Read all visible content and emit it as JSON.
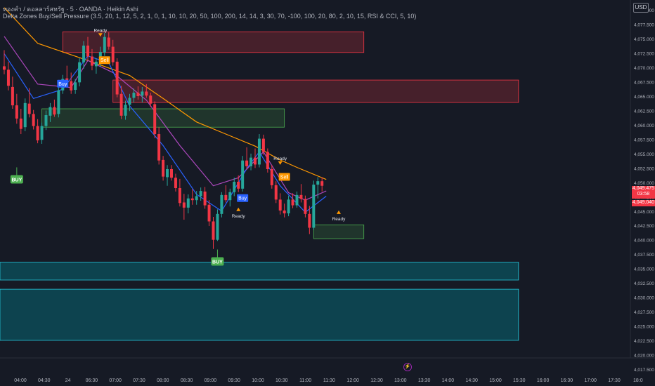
{
  "header": {
    "line1": "ทองคำ / ดอลลาร์สหรัฐ · 5 · OANDA · Heikin Ashi",
    "line2": "Delta Zones Buy/Sell Pressure (3.5, 20, 1, 12, 5, 2, 1, 0, 1, 10, 10, 20, 50, 100, 200, 14, 14, 3, 30, 70, -100, 100, 20, 80, 2, 10, 15, RSI & CCI, 5, 10)"
  },
  "currency_button": "USD",
  "last_price": "4,049.475",
  "countdown": "03:58",
  "bid_price": "4,049.040",
  "flash_icon": "⚡",
  "colors": {
    "bg": "#161a25",
    "up": "#26a69a",
    "down": "#f23645",
    "grid": "#1e222d",
    "ema_orange": "#ff9800",
    "ema_purple": "#ab47bc",
    "ema_blue": "#2962ff",
    "resistance": "#f23645",
    "support": "#4caf50",
    "bottom_zone": "#00838f"
  },
  "chart_data": {
    "type": "candlestick",
    "title": "ทองคำ / ดอลลาร์สหรัฐ · 5 · OANDA · Heikin Ashi",
    "x_tick_labels": [
      "04:00",
      "04:30",
      "24",
      "06:30",
      "07:00",
      "07:30",
      "08:00",
      "08:30",
      "09:00",
      "09:30",
      "10:00",
      "10:30",
      "11:00",
      "11:30",
      "12:00",
      "12:30",
      "13:00",
      "13:30",
      "14:00",
      "14:30",
      "15:00",
      "15:30",
      "16:00",
      "16:30",
      "17:00",
      "17:30",
      "18:0"
    ],
    "y_tick_labels": [
      "4,080.000",
      "4,077.500",
      "4,075.000",
      "4,072.500",
      "4,070.000",
      "4,067.500",
      "4,065.000",
      "4,062.500",
      "4,060.000",
      "4,057.500",
      "4,055.000",
      "4,052.500",
      "4,050.000",
      "4,047.500",
      "4,045.000",
      "4,042.500",
      "4,040.000",
      "4,037.500",
      "4,035.000",
      "4,032.500",
      "4,030.000",
      "4,027.500",
      "4,025.000",
      "4,022.500",
      "4,020.000",
      "4,017.500"
    ],
    "y_range": [
      4017.0,
      4081.0
    ],
    "candles": [
      [
        4070.2,
        4073.0,
        4068.8,
        4069.6
      ],
      [
        4069.6,
        4071.0,
        4066.0,
        4066.8
      ],
      [
        4066.6,
        4068.4,
        4062.8,
        4063.4
      ],
      [
        4063.4,
        4065.4,
        4060.2,
        4061.1
      ],
      [
        4061.1,
        4062.8,
        4058.4,
        4059.3
      ],
      [
        4059.6,
        4064.6,
        4058.9,
        4063.8
      ],
      [
        4063.7,
        4066.4,
        4061.3,
        4061.9
      ],
      [
        4061.9,
        4062.6,
        4059.2,
        4059.8
      ],
      [
        4059.8,
        4061.0,
        4056.8,
        4057.3
      ],
      [
        4057.4,
        4060.4,
        4056.7,
        4059.8
      ],
      [
        4059.8,
        4062.5,
        4059.1,
        4061.7
      ],
      [
        4061.6,
        4063.8,
        4060.5,
        4063.1
      ],
      [
        4063.1,
        4064.4,
        4061.4,
        4061.8
      ],
      [
        4061.9,
        4066.6,
        4061.3,
        4066.0
      ],
      [
        4066.0,
        4068.7,
        4065.4,
        4068.0
      ],
      [
        4068.1,
        4070.3,
        4066.8,
        4067.6
      ],
      [
        4067.6,
        4069.1,
        4065.4,
        4066.0
      ],
      [
        4066.1,
        4068.0,
        4065.4,
        4067.4
      ],
      [
        4067.4,
        4071.6,
        4066.7,
        4070.9
      ],
      [
        4070.9,
        4074.6,
        4069.8,
        4073.8
      ],
      [
        4073.8,
        4075.3,
        4071.3,
        4071.9
      ],
      [
        4071.9,
        4073.2,
        4069.5,
        4070.3
      ],
      [
        4070.2,
        4071.6,
        4068.9,
        4071.0
      ],
      [
        4071.0,
        4073.6,
        4070.1,
        4072.7
      ],
      [
        4072.6,
        4076.0,
        4072.0,
        4075.3
      ],
      [
        4075.2,
        4076.1,
        4073.1,
        4073.6
      ],
      [
        4073.6,
        4074.8,
        4070.3,
        4070.9
      ],
      [
        4071.0,
        4071.6,
        4064.8,
        4065.3
      ],
      [
        4065.4,
        4066.8,
        4061.0,
        4061.6
      ],
      [
        4061.6,
        4064.2,
        4060.9,
        4063.5
      ],
      [
        4063.5,
        4065.4,
        4062.4,
        4064.7
      ],
      [
        4064.7,
        4066.3,
        4063.9,
        4065.6
      ],
      [
        4065.6,
        4066.7,
        4064.4,
        4065.0
      ],
      [
        4065.1,
        4066.6,
        4063.9,
        4065.8
      ],
      [
        4065.8,
        4067.1,
        4064.7,
        4065.1
      ],
      [
        4065.1,
        4065.6,
        4063.1,
        4063.7
      ],
      [
        4063.6,
        4064.1,
        4057.7,
        4058.4
      ],
      [
        4058.4,
        4059.6,
        4053.1,
        4053.8
      ],
      [
        4053.9,
        4054.6,
        4050.3,
        4051.0
      ],
      [
        4050.9,
        4053.0,
        4049.4,
        4052.3
      ],
      [
        4052.3,
        4053.0,
        4050.3,
        4050.8
      ],
      [
        4050.8,
        4051.5,
        4048.4,
        4049.0
      ],
      [
        4049.0,
        4050.6,
        4045.8,
        4046.4
      ],
      [
        4046.5,
        4048.0,
        4043.5,
        4045.6
      ],
      [
        4045.6,
        4047.9,
        4044.6,
        4047.2
      ],
      [
        4047.2,
        4048.8,
        4046.1,
        4046.9
      ],
      [
        4046.9,
        4048.5,
        4046.1,
        4047.6
      ],
      [
        4047.6,
        4049.1,
        4046.8,
        4048.5
      ],
      [
        4048.4,
        4049.2,
        4045.4,
        4046.0
      ],
      [
        4046.1,
        4046.9,
        4042.4,
        4043.2
      ],
      [
        4043.2,
        4044.0,
        4038.4,
        4040.0
      ],
      [
        4040.0,
        4045.3,
        4039.8,
        4044.5
      ],
      [
        4044.5,
        4048.3,
        4043.9,
        4047.8
      ],
      [
        4047.8,
        4049.5,
        4046.5,
        4046.9
      ],
      [
        4046.9,
        4048.9,
        4045.8,
        4048.3
      ],
      [
        4048.3,
        4050.8,
        4047.6,
        4050.1
      ],
      [
        4050.1,
        4051.2,
        4048.3,
        4048.9
      ],
      [
        4048.9,
        4054.6,
        4048.4,
        4053.8
      ],
      [
        4053.8,
        4056.1,
        4052.2,
        4052.8
      ],
      [
        4052.8,
        4055.0,
        4052.1,
        4054.3
      ],
      [
        4054.3,
        4055.9,
        4052.5,
        4053.1
      ],
      [
        4053.1,
        4058.4,
        4052.6,
        4057.6
      ],
      [
        4057.6,
        4058.3,
        4054.8,
        4055.3
      ],
      [
        4055.3,
        4055.9,
        4051.7,
        4052.3
      ],
      [
        4052.3,
        4053.0,
        4048.9,
        4049.5
      ],
      [
        4049.5,
        4050.2,
        4046.4,
        4047.0
      ],
      [
        4047.0,
        4048.1,
        4044.4,
        4045.1
      ],
      [
        4045.1,
        4046.3,
        4043.9,
        4044.6
      ],
      [
        4044.6,
        4047.7,
        4044.1,
        4047.0
      ],
      [
        4047.0,
        4048.1,
        4045.5,
        4046.0
      ],
      [
        4046.0,
        4048.4,
        4045.6,
        4047.8
      ],
      [
        4047.8,
        4049.7,
        4046.5,
        4047.1
      ],
      [
        4047.1,
        4047.7,
        4043.9,
        4044.5
      ],
      [
        4044.5,
        4045.9,
        4041.0,
        4042.1
      ],
      [
        4042.1,
        4050.3,
        4041.7,
        4049.6
      ],
      [
        4049.6,
        4050.9,
        4047.2,
        4050.2
      ],
      [
        4050.2,
        4050.9,
        4048.4,
        4049.4
      ]
    ],
    "series": [
      {
        "name": "",
        "color": "#ff9800",
        "points": [
          [
            0,
            4080.4
          ],
          [
            8,
            4074.2
          ],
          [
            20,
            4071.2
          ],
          [
            30,
            4068.6
          ],
          [
            38,
            4064.6
          ],
          [
            46,
            4060.5
          ],
          [
            54,
            4058.1
          ],
          [
            60,
            4056.3
          ],
          [
            66,
            4053.9
          ],
          [
            70,
            4052.6
          ],
          [
            77,
            4050.5
          ]
        ]
      },
      {
        "name": "",
        "color": "#ab47bc",
        "points": [
          [
            0,
            4075.4
          ],
          [
            8,
            4067.1
          ],
          [
            16,
            4066.5
          ],
          [
            20,
            4071.2
          ],
          [
            26,
            4069.1
          ],
          [
            34,
            4064.3
          ],
          [
            42,
            4056.4
          ],
          [
            50,
            4049.4
          ],
          [
            56,
            4050.8
          ],
          [
            62,
            4055.3
          ],
          [
            68,
            4048.2
          ],
          [
            72,
            4046.9
          ],
          [
            77,
            4048.5
          ]
        ]
      },
      {
        "name": "",
        "color": "#2962ff",
        "points": [
          [
            0,
            4072.4
          ],
          [
            7,
            4064.6
          ],
          [
            14,
            4066.2
          ],
          [
            20,
            4072.0
          ],
          [
            25,
            4070.8
          ],
          [
            30,
            4063.3
          ],
          [
            38,
            4056.4
          ],
          [
            46,
            4047.9
          ],
          [
            52,
            4045.0
          ],
          [
            58,
            4052.4
          ],
          [
            61,
            4055.3
          ],
          [
            66,
            4049.4
          ],
          [
            72,
            4044.8
          ],
          [
            77,
            4047.6
          ]
        ]
      }
    ],
    "zones": [
      {
        "kind": "resistance",
        "from_bar": 14,
        "to_bar": 86,
        "top": 4076.2,
        "bottom": 4072.6
      },
      {
        "kind": "resistance",
        "from_bar": 26,
        "to_bar": 123,
        "top": 4067.8,
        "bottom": 4063.9
      },
      {
        "kind": "support",
        "from_bar": 9,
        "to_bar": 67,
        "top": 4062.8,
        "bottom": 4059.6
      },
      {
        "kind": "support",
        "from_bar": 74,
        "to_bar": 86,
        "top": 4042.6,
        "bottom": 4040.2
      },
      {
        "kind": "bottom",
        "from_bar": -2,
        "to_bar": 123,
        "top": 4036.1,
        "bottom": 4033.0
      },
      {
        "kind": "bottom",
        "from_bar": -2,
        "to_bar": 123,
        "top": 4031.4,
        "bottom": 4022.5
      }
    ],
    "signals": [
      {
        "label": "BUY",
        "bar": 3,
        "price": 4050.9,
        "kind": "buy-big"
      },
      {
        "label": "Buy",
        "bar": 14,
        "price": 4067.1,
        "kind": "buy"
      },
      {
        "label": "Ready",
        "bar": 23,
        "price": 4076.2,
        "kind": "ready-top"
      },
      {
        "label": "Sell",
        "bar": 24,
        "price": 4071.2,
        "kind": "sell"
      },
      {
        "label": "BUY",
        "bar": 51,
        "price": 4036.6,
        "kind": "buy-big"
      },
      {
        "label": "Buy",
        "bar": 57,
        "price": 4047.2,
        "kind": "buy"
      },
      {
        "label": "Ready",
        "bar": 56,
        "price": 4045.0,
        "kind": "ready-bottom"
      },
      {
        "label": "Ready",
        "bar": 66,
        "price": 4053.9,
        "kind": "ready-top"
      },
      {
        "label": "Sell",
        "bar": 67,
        "price": 4050.9,
        "kind": "sell"
      },
      {
        "label": "Ready",
        "bar": 80,
        "price": 4044.5,
        "kind": "ready-bottom"
      }
    ],
    "grid": false,
    "legend": "none"
  }
}
